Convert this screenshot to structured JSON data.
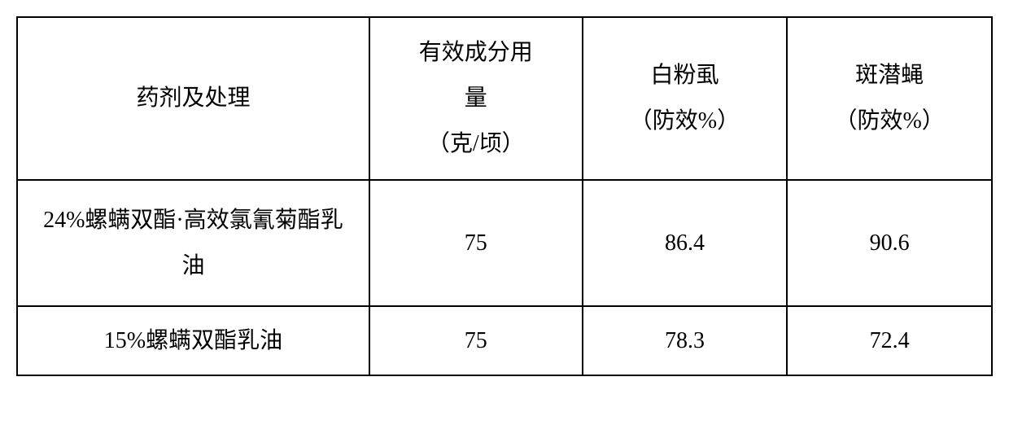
{
  "table": {
    "columns": [
      {
        "lines": [
          "药剂及处理"
        ]
      },
      {
        "lines": [
          "有效成分用",
          "量",
          "（克/顷）"
        ]
      },
      {
        "lines": [
          "白粉虱",
          "（防效%）"
        ]
      },
      {
        "lines": [
          "斑潜蝇",
          "（防效%）"
        ]
      }
    ],
    "rows": [
      {
        "label_lines": [
          "24%螺螨双酯·高效氯氰菊酯乳",
          "油"
        ],
        "values": [
          "75",
          "86.4",
          "90.6"
        ]
      },
      {
        "label_lines": [
          "15%螺螨双酯乳油"
        ],
        "values": [
          "75",
          "78.3",
          "72.4"
        ]
      }
    ],
    "style": {
      "border_color": "#000000",
      "background_color": "#ffffff",
      "font_size_pt": 21,
      "cell_text_color": "#000000"
    }
  }
}
